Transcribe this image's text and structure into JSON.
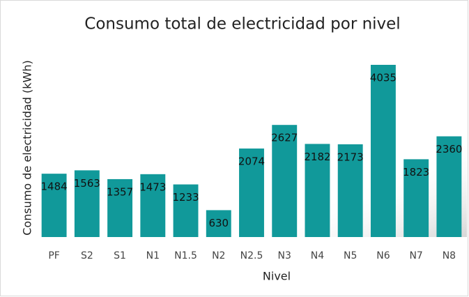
{
  "chart_data": {
    "type": "bar",
    "title": "Consumo total de electricidad por nivel",
    "x_label": "Nivel",
    "y_label": "Consumo  de electricidad (kWh)",
    "categories": [
      "PF",
      "S2",
      "S1",
      "N1",
      "N1.5",
      "N2",
      "N2.5",
      "N3",
      "N4",
      "N5",
      "N6",
      "N7",
      "N8"
    ],
    "values": [
      1484,
      1563,
      1357,
      1473,
      1233,
      630,
      2074,
      2627,
      2182,
      2173,
      4035,
      1823,
      2360
    ],
    "color": "#11999a"
  }
}
